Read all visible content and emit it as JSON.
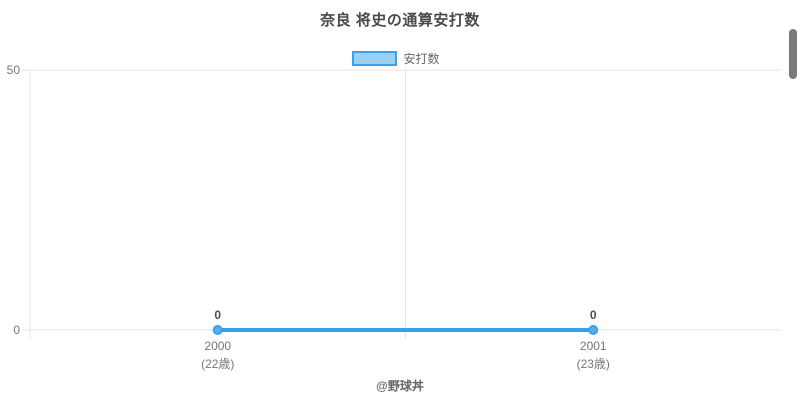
{
  "page": {
    "footer": "@野球丼"
  },
  "chart_data": {
    "type": "line",
    "title": "奈良 将史の通算安打数",
    "legend": {
      "position": "top",
      "entries": [
        "安打数"
      ]
    },
    "categories": [
      "2000",
      "2001"
    ],
    "category_sublabels": [
      "(22歳)",
      "(23歳)"
    ],
    "series": [
      {
        "name": "安打数",
        "values": [
          0,
          0
        ]
      }
    ],
    "point_labels": [
      "0",
      "0"
    ],
    "xlabel": "",
    "ylabel": "",
    "ylim": [
      0,
      50
    ],
    "yticks": [
      50,
      0
    ],
    "grid": true,
    "colors": {
      "line": "#36a2eb",
      "point_fill": "#5ab0ed",
      "legend_fill": "#9bd0f5",
      "grid": "#e3e3e3",
      "tick_text": "#767676",
      "title_text": "#4a4a4a",
      "value_label": "#4d4d4d",
      "footer_text": "#666666",
      "scrollbar": "#7a7a7a"
    }
  }
}
